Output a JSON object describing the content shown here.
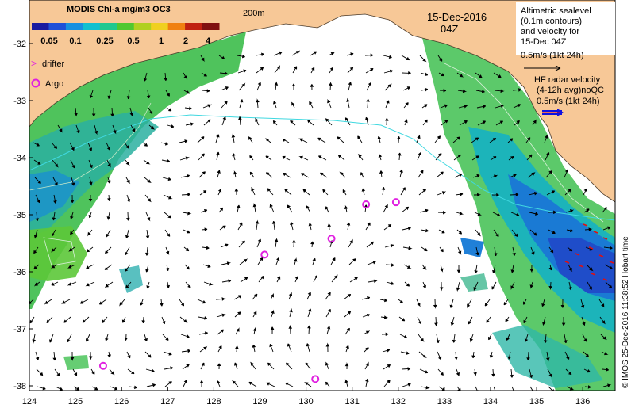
{
  "colorbar": {
    "title": "MODIS Chl-a mg/m3 OC3",
    "ticks": [
      "0.05",
      "0.1",
      "0.25",
      "0.5",
      "1",
      "2",
      "4"
    ],
    "colors": [
      "#1a1aa0",
      "#2050d8",
      "#1890e0",
      "#10c0d0",
      "#20c890",
      "#50c830",
      "#b0d020",
      "#f0d020",
      "#f08010",
      "#c02010",
      "#801010"
    ]
  },
  "legend": {
    "drifter": "drifter",
    "argo": "Argo",
    "isobath": "200m"
  },
  "header": {
    "date": "15-Dec-2016",
    "time": "04Z"
  },
  "altimetry_note": {
    "line1": "Altimetric sealevel",
    "line2": "(0.1m contours)",
    "line3": "and velocity for",
    "line4": "15-Dec 04Z",
    "line5": "0.5m/s (1kt 24h)"
  },
  "hf_radar_note": {
    "line1": "HF radar velocity",
    "line2": "(4-12h avg)noQC",
    "line3": "0.5m/s (1kt 24h)"
  },
  "credit": "© IMOS 25-Dec-2016 11:38:52 Hobart time",
  "axes": {
    "x_ticks": [
      "124",
      "125",
      "126",
      "127",
      "128",
      "129",
      "130",
      "131",
      "132",
      "133",
      "134",
      "135",
      "136"
    ],
    "y_ticks": [
      "-32",
      "-33",
      "-34",
      "-35",
      "-36",
      "-37",
      "-38"
    ]
  },
  "argo_floats": [
    {
      "lon": 129.1,
      "lat": -35.7
    },
    {
      "lon": 130.55,
      "lat": -35.42
    },
    {
      "lon": 131.3,
      "lat": -34.82
    },
    {
      "lon": 131.95,
      "lat": -34.78
    },
    {
      "lon": 125.6,
      "lat": -37.65
    },
    {
      "lon": 130.2,
      "lat": -37.88
    }
  ],
  "colors": {
    "land": "#f7c897",
    "ocean": "#ffffff",
    "isobath": "#40d8e0",
    "argo": "#e020e0",
    "hf_radar_arrow": "#1010e0",
    "hf_radar_vectors": "#e01010"
  }
}
